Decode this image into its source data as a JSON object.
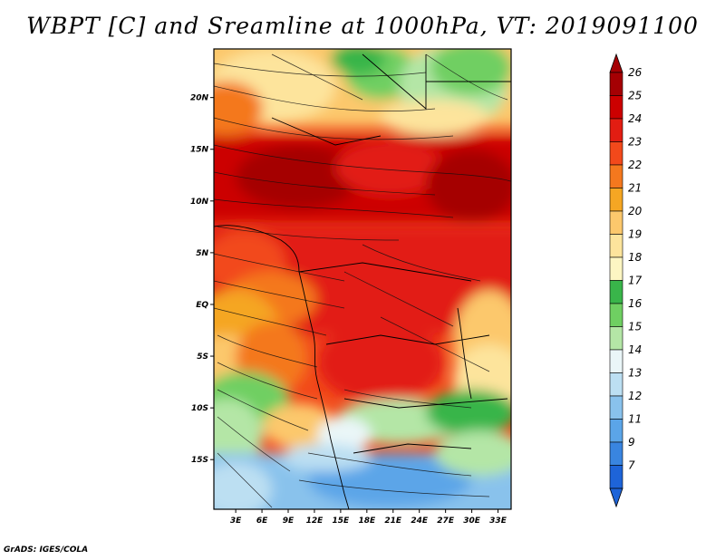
{
  "title": "WBPT [C] and Sreamline at 1000hPa, VT: 2019091100",
  "credit": "GrADS: IGES/COLA",
  "map": {
    "lon_labels": [
      "3E",
      "6E",
      "9E",
      "12E",
      "15E",
      "18E",
      "21E",
      "24E",
      "27E",
      "30E",
      "33E"
    ],
    "lat_labels": [
      "20N",
      "15N",
      "10N",
      "5N",
      "EQ",
      "5S",
      "10S",
      "15S"
    ],
    "lon_values": [
      3,
      6,
      9,
      12,
      15,
      18,
      21,
      24,
      27,
      30,
      33
    ],
    "lat_values": [
      20,
      15,
      10,
      5,
      0,
      -5,
      -10,
      -15
    ],
    "lon_range": [
      0.5,
      34.5
    ],
    "lat_range": [
      -19.8,
      24.7
    ]
  },
  "colorbar": {
    "labels": [
      "26",
      "25",
      "24",
      "23",
      "22",
      "21",
      "20",
      "19",
      "18",
      "17",
      "16",
      "15",
      "14",
      "13",
      "12",
      "11",
      "9",
      "7"
    ],
    "colors": [
      "#a50003",
      "#cc0000",
      "#e21d12",
      "#f2491b",
      "#f4781e",
      "#f5a623",
      "#fcc86c",
      "#fde49c",
      "#fdf6c3",
      "#39b54a",
      "#6fcf62",
      "#b4e6a6",
      "#eaf6f8",
      "#bcdff2",
      "#89c2ec",
      "#5ba5e8",
      "#3985e0",
      "#1e64d8"
    ]
  },
  "chart_data": {
    "type": "heatmap",
    "title": "WBPT [C] and Sreamline at 1000hPa, VT: 2019091100",
    "xlabel": "",
    "ylabel": "",
    "xlim": [
      0.5,
      34.5
    ],
    "ylim": [
      -19.8,
      24.7
    ],
    "x_tick_labels": [
      "3E",
      "6E",
      "9E",
      "12E",
      "15E",
      "18E",
      "21E",
      "24E",
      "27E",
      "30E",
      "33E"
    ],
    "y_tick_labels": [
      "20N",
      "15N",
      "10N",
      "5N",
      "EQ",
      "5S",
      "10S",
      "15S"
    ],
    "colorbar_levels": [
      7,
      9,
      11,
      12,
      13,
      14,
      15,
      16,
      17,
      18,
      19,
      20,
      21,
      22,
      23,
      24,
      25,
      26
    ],
    "overlay": "streamlines"
  }
}
